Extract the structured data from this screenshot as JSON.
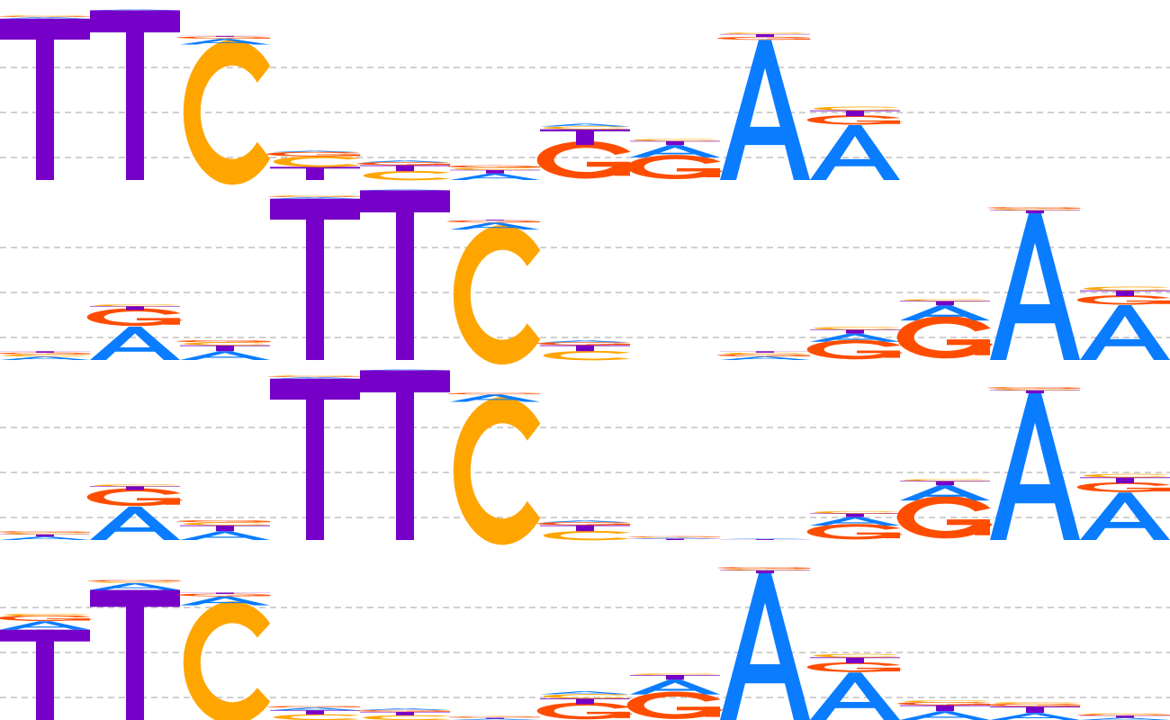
{
  "colors": {
    "A": "#0a7cff",
    "C": "#ffa500",
    "G": "#ff4d00",
    "T": "#7700c8",
    "grid": "#b4b4b4"
  },
  "logos": [
    {
      "columns": [
        {
          "T": 0.98,
          "A": 0.01,
          "C": 0.005,
          "G": 0.005
        },
        {
          "T": 0.99,
          "A": 0.005,
          "C": 0.003,
          "G": 0.002
        },
        {
          "C": 0.94,
          "A": 0.04,
          "G": 0.015,
          "T": 0.005
        },
        {
          "T": 0.45,
          "C": 0.35,
          "G": 0.15,
          "A": 0.05
        },
        {
          "C": 0.45,
          "T": 0.3,
          "G": 0.15,
          "A": 0.1
        },
        {
          "A": 0.45,
          "T": 0.25,
          "G": 0.15,
          "C": 0.15
        },
        {
          "G": 0.62,
          "T": 0.28,
          "A": 0.05,
          "C": 0.05
        },
        {
          "G": 0.55,
          "A": 0.3,
          "T": 0.1,
          "C": 0.05
        },
        {
          "A": 0.95,
          "T": 0.02,
          "G": 0.02,
          "C": 0.01
        },
        {
          "A": 0.75,
          "G": 0.12,
          "T": 0.08,
          "C": 0.05
        }
      ]
    },
    {
      "columns": [
        {
          "A": 0.4,
          "C": 0.25,
          "G": 0.2,
          "T": 0.15
        },
        {
          "A": 0.6,
          "G": 0.3,
          "T": 0.07,
          "C": 0.03
        },
        {
          "A": 0.45,
          "T": 0.3,
          "C": 0.15,
          "G": 0.1
        },
        {
          "T": 0.98,
          "A": 0.01,
          "C": 0.005,
          "G": 0.005
        },
        {
          "T": 0.99,
          "A": 0.005,
          "C": 0.003,
          "G": 0.002
        },
        {
          "C": 0.93,
          "A": 0.05,
          "G": 0.015,
          "T": 0.005
        },
        {
          "C": 0.45,
          "T": 0.3,
          "G": 0.15,
          "A": 0.1
        },
        {
          "A": 0.25,
          "C": 0.25,
          "G": 0.25,
          "T": 0.25
        },
        {
          "A": 0.4,
          "G": 0.25,
          "C": 0.2,
          "T": 0.15
        },
        {
          "G": 0.55,
          "A": 0.25,
          "T": 0.12,
          "C": 0.08
        },
        {
          "G": 0.65,
          "A": 0.25,
          "T": 0.07,
          "C": 0.03
        },
        {
          "A": 0.96,
          "T": 0.02,
          "G": 0.01,
          "C": 0.01
        },
        {
          "A": 0.75,
          "G": 0.12,
          "T": 0.08,
          "C": 0.05
        }
      ]
    },
    {
      "columns": [
        {
          "A": 0.4,
          "T": 0.25,
          "C": 0.2,
          "G": 0.15
        },
        {
          "A": 0.6,
          "G": 0.3,
          "T": 0.07,
          "C": 0.03
        },
        {
          "A": 0.45,
          "T": 0.3,
          "C": 0.15,
          "G": 0.1
        },
        {
          "T": 0.98,
          "A": 0.01,
          "C": 0.005,
          "G": 0.005
        },
        {
          "T": 0.99,
          "A": 0.005,
          "C": 0.003,
          "G": 0.002
        },
        {
          "C": 0.94,
          "A": 0.05,
          "G": 0.01,
          "T": 0.0
        },
        {
          "C": 0.45,
          "T": 0.3,
          "G": 0.15,
          "A": 0.1
        },
        {
          "T": 0.35,
          "A": 0.25,
          "G": 0.2,
          "C": 0.2
        },
        {
          "A": 0.3,
          "T": 0.3,
          "G": 0.2,
          "C": 0.2
        },
        {
          "G": 0.5,
          "A": 0.3,
          "T": 0.12,
          "C": 0.08
        },
        {
          "G": 0.65,
          "A": 0.25,
          "T": 0.07,
          "C": 0.03
        },
        {
          "A": 0.96,
          "T": 0.02,
          "G": 0.01,
          "C": 0.01
        },
        {
          "A": 0.72,
          "G": 0.14,
          "T": 0.09,
          "C": 0.05
        }
      ]
    },
    {
      "columns": [
        {
          "T": 0.85,
          "A": 0.08,
          "G": 0.05,
          "C": 0.02
        },
        {
          "T": 0.93,
          "A": 0.05,
          "G": 0.01,
          "C": 0.01
        },
        {
          "C": 0.9,
          "A": 0.07,
          "G": 0.02,
          "T": 0.01
        },
        {
          "C": 0.4,
          "T": 0.3,
          "A": 0.2,
          "G": 0.1
        },
        {
          "C": 0.4,
          "T": 0.3,
          "A": 0.15,
          "G": 0.15
        },
        {
          "A": 0.35,
          "T": 0.25,
          "G": 0.2,
          "C": 0.2
        },
        {
          "G": 0.55,
          "T": 0.2,
          "C": 0.15,
          "A": 0.1
        },
        {
          "G": 0.55,
          "A": 0.32,
          "T": 0.1,
          "C": 0.03
        },
        {
          "A": 0.96,
          "T": 0.02,
          "G": 0.01,
          "C": 0.01
        },
        {
          "A": 0.72,
          "G": 0.14,
          "T": 0.09,
          "C": 0.05
        },
        {
          "A": 0.45,
          "T": 0.3,
          "G": 0.15,
          "C": 0.1
        },
        {
          "A": 0.4,
          "T": 0.35,
          "G": 0.15,
          "C": 0.1
        },
        {
          "A": 0.35,
          "T": 0.3,
          "G": 0.2,
          "C": 0.15
        }
      ]
    }
  ]
}
